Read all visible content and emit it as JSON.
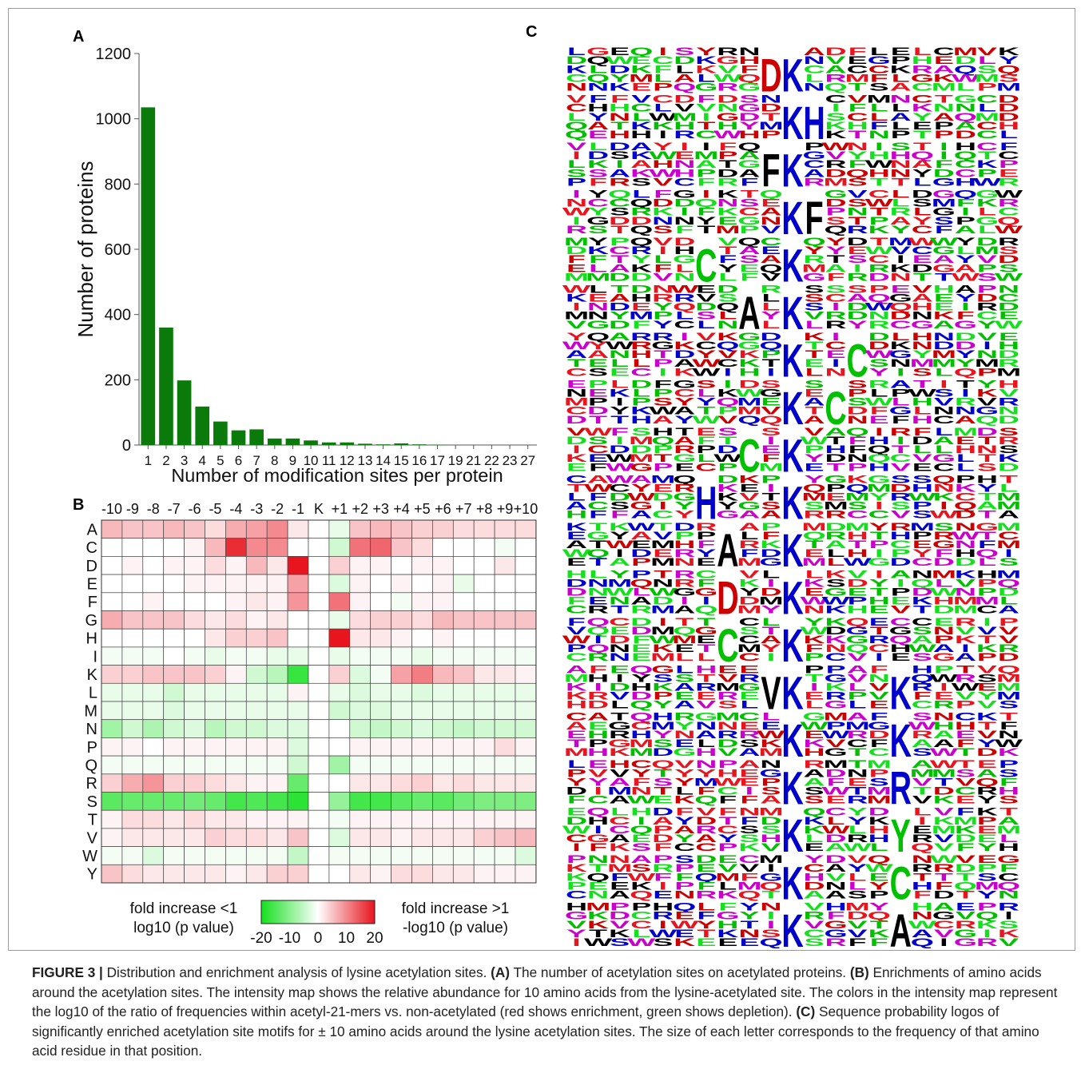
{
  "panels": {
    "a": "A",
    "b": "B",
    "c": "C"
  },
  "chart_data": [
    {
      "type": "bar",
      "panel": "A",
      "categories": [
        "1",
        "2",
        "3",
        "4",
        "5",
        "6",
        "7",
        "8",
        "9",
        "10",
        "11",
        "12",
        "13",
        "14",
        "15",
        "16",
        "17",
        "19",
        "21",
        "22",
        "23",
        "27"
      ],
      "values": [
        1035,
        360,
        198,
        118,
        72,
        45,
        48,
        20,
        20,
        14,
        8,
        8,
        4,
        2,
        5,
        2,
        1,
        0,
        0,
        0,
        0,
        0
      ],
      "xlabel": "Number of modification sites per protein",
      "ylabel": "Number of proteins",
      "ylim": [
        0,
        1200
      ],
      "yticks": [
        0,
        200,
        400,
        600,
        800,
        1000,
        1200
      ],
      "bar_color": "#0a7a0a",
      "grid": false
    },
    {
      "type": "heatmap",
      "panel": "B",
      "columns": [
        "-10",
        "-9",
        "-8",
        "-7",
        "-6",
        "-5",
        "-4",
        "-3",
        "-2",
        "-1",
        "K",
        "+1",
        "+2",
        "+3",
        "+4",
        "+5",
        "+6",
        "+7",
        "+8",
        "+9",
        "+10"
      ],
      "rows": [
        "A",
        "C",
        "D",
        "E",
        "F",
        "G",
        "H",
        "I",
        "K",
        "L",
        "M",
        "N",
        "P",
        "Q",
        "R",
        "S",
        "T",
        "V",
        "W",
        "Y"
      ],
      "values": [
        [
          6,
          5,
          5,
          6,
          5,
          3,
          7,
          8,
          10,
          2,
          0,
          -2,
          5,
          6,
          5,
          4,
          4,
          3,
          3,
          3,
          3
        ],
        [
          0,
          0,
          0,
          0,
          1,
          6,
          18,
          10,
          10,
          0,
          0,
          -4,
          12,
          13,
          5,
          3,
          0,
          0,
          0,
          -1,
          0
        ],
        [
          0,
          1,
          0,
          1,
          1,
          3,
          1,
          6,
          2,
          20,
          0,
          4,
          1,
          1,
          0,
          1,
          1,
          0,
          0,
          2,
          0
        ],
        [
          0,
          0,
          0,
          0,
          1,
          1,
          1,
          1,
          1,
          8,
          0,
          -3,
          1,
          0,
          1,
          0,
          1,
          -2,
          0,
          0,
          0
        ],
        [
          0,
          0,
          1,
          0,
          0,
          0,
          1,
          2,
          1,
          9,
          0,
          12,
          1,
          0,
          -1,
          1,
          1,
          0,
          0,
          0,
          0
        ],
        [
          7,
          5,
          5,
          5,
          3,
          2,
          3,
          1,
          2,
          0,
          0,
          -2,
          3,
          4,
          4,
          3,
          6,
          5,
          5,
          5,
          5
        ],
        [
          0,
          0,
          0,
          0,
          0,
          2,
          4,
          4,
          5,
          0,
          0,
          20,
          2,
          2,
          1,
          0,
          1,
          0,
          0,
          0,
          0
        ],
        [
          -1,
          -1,
          -1,
          0,
          -1,
          -2,
          -1,
          -1,
          -2,
          -2,
          0,
          -2,
          -1,
          -1,
          -1,
          -2,
          -1,
          -1,
          -1,
          -1,
          -1
        ],
        [
          4,
          4,
          5,
          5,
          5,
          4,
          1,
          -4,
          -6,
          -17,
          0,
          4,
          -3,
          -1,
          8,
          11,
          6,
          5,
          2,
          2,
          1
        ],
        [
          -2,
          -2,
          -2,
          -4,
          -2,
          -2,
          -2,
          -2,
          -2,
          1,
          0,
          -2,
          -3,
          -2,
          -2,
          -3,
          -2,
          -2,
          -2,
          -2,
          -2
        ],
        [
          -2,
          -2,
          -2,
          -3,
          -2,
          -2,
          -2,
          -2,
          -2,
          -2,
          0,
          -4,
          -3,
          -3,
          -2,
          -2,
          -2,
          -2,
          -2,
          -2,
          -2
        ],
        [
          -8,
          -4,
          -7,
          -4,
          -3,
          -6,
          -4,
          -4,
          -3,
          -3,
          0,
          0,
          -4,
          -5,
          -4,
          -3,
          -4,
          -5,
          -4,
          -4,
          -4
        ],
        [
          1,
          1,
          0,
          1,
          1,
          1,
          1,
          1,
          1,
          -3,
          0,
          0,
          1,
          1,
          1,
          1,
          1,
          1,
          1,
          3,
          1
        ],
        [
          -1,
          -1,
          -1,
          -1,
          -1,
          -1,
          -1,
          -1,
          -1,
          -4,
          0,
          -8,
          -1,
          -1,
          -1,
          -1,
          -1,
          -1,
          -1,
          -1,
          -1
        ],
        [
          4,
          7,
          9,
          4,
          4,
          3,
          2,
          1,
          1,
          -13,
          0,
          0,
          2,
          2,
          3,
          4,
          2,
          3,
          2,
          2,
          2
        ],
        [
          -14,
          -13,
          -13,
          -13,
          -12,
          -13,
          -16,
          -15,
          -16,
          -18,
          0,
          -9,
          -16,
          -16,
          -14,
          -13,
          -14,
          -12,
          -11,
          -11,
          -11
        ],
        [
          1,
          3,
          3,
          2,
          3,
          2,
          2,
          1,
          1,
          1,
          0,
          -1,
          1,
          1,
          1,
          1,
          1,
          1,
          1,
          1,
          1
        ],
        [
          1,
          2,
          2,
          2,
          2,
          4,
          3,
          3,
          2,
          5,
          0,
          -3,
          2,
          2,
          1,
          2,
          2,
          2,
          4,
          5,
          6
        ],
        [
          -1,
          -1,
          -3,
          -1,
          -1,
          -1,
          -1,
          -1,
          -1,
          -5,
          0,
          -1,
          -1,
          -1,
          -1,
          -1,
          -1,
          -1,
          -1,
          -1,
          -3
        ],
        [
          5,
          3,
          2,
          2,
          2,
          2,
          1,
          2,
          4,
          4,
          0,
          0,
          2,
          1,
          3,
          3,
          2,
          2,
          1,
          1,
          1
        ]
      ],
      "color_scale": {
        "min": -20,
        "max": 20,
        "neg_color": "#14e01e",
        "mid_color": "#ffffff",
        "pos_color": "#e8141e"
      },
      "legend": {
        "left_line1": "fold increase <1",
        "left_line2": "log10 (p value)",
        "right_line1": "fold increase >1",
        "right_line2": "-log10 (p value)",
        "ticks": [
          "-20",
          "-10",
          "0",
          "10",
          "20"
        ]
      }
    }
  ],
  "logo": {
    "panel": "C",
    "rows": [
      {
        "letters": [
          {
            "pos": -1,
            "aa": "D",
            "color": "#cc0000"
          },
          {
            "pos": 0,
            "aa": "K",
            "color": "#0000cc"
          }
        ]
      },
      {
        "letters": [
          {
            "pos": 0,
            "aa": "K",
            "color": "#0000cc"
          },
          {
            "pos": 1,
            "aa": "H",
            "color": "#0000cc"
          }
        ]
      },
      {
        "letters": [
          {
            "pos": -1,
            "aa": "F",
            "color": "#000000"
          },
          {
            "pos": 0,
            "aa": "K",
            "color": "#0000cc"
          }
        ]
      },
      {
        "letters": [
          {
            "pos": 0,
            "aa": "K",
            "color": "#0000cc"
          },
          {
            "pos": 1,
            "aa": "F",
            "color": "#000000"
          }
        ]
      },
      {
        "letters": [
          {
            "pos": -4,
            "aa": "C",
            "color": "#00c000"
          },
          {
            "pos": 0,
            "aa": "K",
            "color": "#0000cc"
          }
        ]
      },
      {
        "letters": [
          {
            "pos": -2,
            "aa": "A",
            "color": "#000000"
          },
          {
            "pos": 0,
            "aa": "K",
            "color": "#0000cc"
          }
        ]
      },
      {
        "letters": [
          {
            "pos": 0,
            "aa": "K",
            "color": "#0000cc"
          },
          {
            "pos": 3,
            "aa": "C",
            "color": "#00c000"
          }
        ]
      },
      {
        "letters": [
          {
            "pos": 0,
            "aa": "K",
            "color": "#0000cc"
          },
          {
            "pos": 2,
            "aa": "C",
            "color": "#00c000"
          }
        ]
      },
      {
        "letters": [
          {
            "pos": -2,
            "aa": "C",
            "color": "#00c000"
          },
          {
            "pos": 0,
            "aa": "K",
            "color": "#0000cc"
          }
        ]
      },
      {
        "letters": [
          {
            "pos": -4,
            "aa": "H",
            "color": "#0000cc"
          },
          {
            "pos": 0,
            "aa": "K",
            "color": "#0000cc"
          }
        ]
      },
      {
        "letters": [
          {
            "pos": -3,
            "aa": "A",
            "color": "#000000"
          },
          {
            "pos": 0,
            "aa": "K",
            "color": "#0000cc"
          }
        ]
      },
      {
        "letters": [
          {
            "pos": -3,
            "aa": "D",
            "color": "#cc0000"
          },
          {
            "pos": 0,
            "aa": "K",
            "color": "#0000cc"
          }
        ]
      },
      {
        "letters": [
          {
            "pos": -3,
            "aa": "C",
            "color": "#00c000"
          },
          {
            "pos": 0,
            "aa": "K",
            "color": "#0000cc"
          }
        ]
      },
      {
        "letters": [
          {
            "pos": -1,
            "aa": "V",
            "color": "#000000"
          },
          {
            "pos": 0,
            "aa": "K",
            "color": "#0000cc"
          },
          {
            "pos": 5,
            "aa": "K",
            "color": "#0000cc"
          }
        ]
      },
      {
        "letters": [
          {
            "pos": 0,
            "aa": "K",
            "color": "#0000cc"
          },
          {
            "pos": 5,
            "aa": "K",
            "color": "#0000cc"
          }
        ]
      },
      {
        "letters": [
          {
            "pos": 0,
            "aa": "K",
            "color": "#0000cc"
          },
          {
            "pos": 5,
            "aa": "R",
            "color": "#0000cc"
          }
        ]
      },
      {
        "letters": [
          {
            "pos": 0,
            "aa": "K",
            "color": "#0000cc"
          },
          {
            "pos": 5,
            "aa": "Y",
            "color": "#00c000"
          }
        ]
      },
      {
        "letters": [
          {
            "pos": 0,
            "aa": "K",
            "color": "#0000cc"
          },
          {
            "pos": 5,
            "aa": "C",
            "color": "#00c000"
          }
        ]
      },
      {
        "letters": [
          {
            "pos": 0,
            "aa": "K",
            "color": "#0000cc"
          },
          {
            "pos": 5,
            "aa": "A",
            "color": "#000000"
          }
        ]
      }
    ],
    "background_letters": [
      "A",
      "C",
      "D",
      "E",
      "F",
      "G",
      "H",
      "I",
      "K",
      "L",
      "M",
      "N",
      "P",
      "Q",
      "R",
      "S",
      "T",
      "V",
      "W",
      "Y"
    ],
    "background_colors": [
      "#000000",
      "#00c000",
      "#cc0000",
      "#0000cc",
      "#cc00cc",
      "#e8141e",
      "#14e01e"
    ]
  },
  "caption": {
    "label": "FIGURE 3 |",
    "intro": " Distribution and enrichment analysis of lysine acetylation sites. ",
    "a_label": "(A)",
    "a_text": " The number of acetylation sites on acetylated proteins. ",
    "b_label": "(B)",
    "b_text": " Enrichments of amino acids around the acetylation sites. The intensity map shows the relative abundance for 10 amino acids from the lysine-acetylated site. The colors in the intensity map represent the log10 of the ratio of frequencies within acetyl-21-mers vs. non-acetylated (red shows enrichment, green shows depletion). ",
    "c_label": "(C)",
    "c_text": " Sequence probability logos of significantly enriched acetylation site motifs for ± 10 amino acids around the lysine acetylation sites. The size of each letter corresponds to the frequency of that amino acid residue in that position."
  }
}
